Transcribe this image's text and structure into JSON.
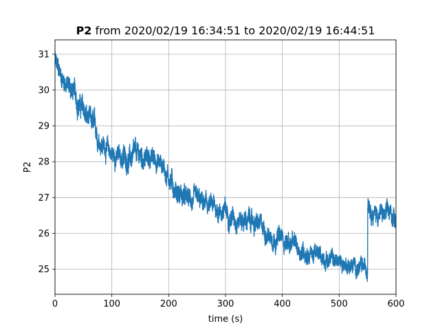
{
  "chart_data": {
    "type": "line",
    "title_bold": "P2",
    "title_rest": " from 2020/02/19 16:34:51 to 2020/02/19 16:44:51",
    "xlabel": "time (s)",
    "ylabel": "P2",
    "xlim": [
      0,
      600
    ],
    "ylim": [
      24.3,
      31.4
    ],
    "xticks": [
      0,
      100,
      200,
      300,
      400,
      500,
      600
    ],
    "yticks": [
      25,
      26,
      27,
      28,
      29,
      30,
      31
    ],
    "grid": true,
    "series": [
      {
        "color": "#1f77b4",
        "x": [
          0,
          5,
          10,
          20,
          30,
          40,
          50,
          60,
          70,
          80,
          90,
          100,
          110,
          120,
          130,
          140,
          150,
          160,
          170,
          180,
          190,
          200,
          210,
          220,
          230,
          240,
          250,
          260,
          270,
          280,
          290,
          300,
          310,
          320,
          330,
          340,
          350,
          360,
          370,
          380,
          390,
          400,
          410,
          420,
          430,
          440,
          450,
          460,
          470,
          480,
          490,
          500,
          510,
          520,
          530,
          540,
          548,
          552,
          560,
          570,
          580,
          590,
          600
        ],
        "y": [
          30.8,
          30.5,
          30.4,
          30.2,
          30.0,
          29.7,
          29.4,
          29.1,
          28.9,
          28.6,
          28.4,
          28.2,
          28.15,
          28.1,
          28.1,
          28.1,
          28.15,
          28.1,
          28.1,
          28.05,
          27.9,
          27.6,
          27.3,
          27.1,
          26.95,
          26.9,
          26.85,
          26.8,
          26.75,
          26.7,
          26.65,
          26.6,
          26.5,
          26.45,
          26.4,
          26.35,
          26.3,
          26.2,
          26.05,
          25.95,
          25.9,
          25.85,
          25.75,
          25.65,
          25.55,
          25.5,
          25.45,
          25.4,
          25.35,
          25.3,
          25.25,
          25.2,
          25.15,
          25.1,
          25.05,
          25.0,
          25.0,
          27.0,
          26.6,
          26.55,
          26.5,
          26.5,
          26.45
        ],
        "noise": [
          0.35,
          0.35,
          0.3,
          0.3,
          0.35,
          0.35,
          0.35,
          0.35,
          0.35,
          0.3,
          0.3,
          0.3,
          0.3,
          0.35,
          0.35,
          0.35,
          0.35,
          0.3,
          0.3,
          0.3,
          0.3,
          0.35,
          0.35,
          0.35,
          0.3,
          0.3,
          0.3,
          0.3,
          0.3,
          0.3,
          0.3,
          0.3,
          0.3,
          0.3,
          0.3,
          0.3,
          0.3,
          0.3,
          0.3,
          0.3,
          0.3,
          0.3,
          0.3,
          0.3,
          0.3,
          0.3,
          0.3,
          0.25,
          0.25,
          0.25,
          0.25,
          0.25,
          0.25,
          0.25,
          0.25,
          0.25,
          0.25,
          0.3,
          0.3,
          0.3,
          0.3,
          0.3,
          0.3
        ]
      }
    ]
  }
}
